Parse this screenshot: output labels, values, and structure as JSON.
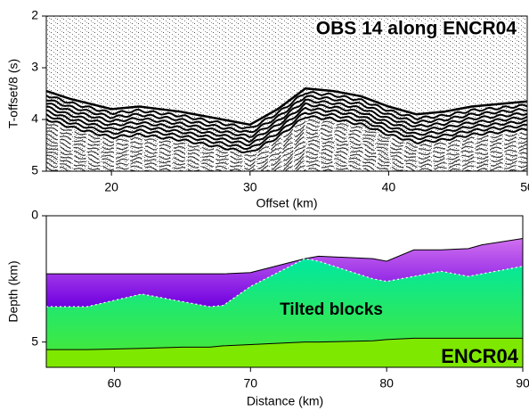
{
  "chart_data": [
    {
      "type": "seismic",
      "title": "OBS 14 along ENCR04",
      "xlabel": "Offset (km)",
      "ylabel": "T-offset/8 (s)",
      "x": [
        15.3,
        17,
        20,
        22,
        25,
        28,
        30,
        32,
        34,
        36,
        38,
        40,
        42,
        44,
        46,
        48,
        50
      ],
      "values": [
        3.45,
        3.6,
        3.8,
        3.75,
        3.85,
        4.0,
        4.1,
        3.8,
        3.4,
        3.45,
        3.55,
        3.75,
        3.9,
        3.85,
        3.75,
        3.7,
        3.65
      ],
      "color": "#000000",
      "xlim": [
        15.3,
        50
      ],
      "ylim": [
        5,
        2
      ],
      "xticks": [
        20,
        30,
        40,
        50
      ],
      "yticks": [
        2,
        3,
        4,
        5
      ]
    },
    {
      "type": "layers",
      "xlabel": "Distance (km)",
      "ylabel": "Depth (km)",
      "annotations": [
        "Tilted blocks",
        "ENCR04"
      ],
      "x": [
        55,
        58,
        62,
        65,
        67,
        68,
        70,
        74,
        75,
        79,
        80,
        82,
        84,
        86,
        87,
        90
      ],
      "series": [
        {
          "color": "#a640e8",
          "values": [
            2.3,
            2.3,
            2.3,
            2.3,
            2.3,
            2.3,
            2.25,
            1.7,
            1.6,
            1.7,
            1.8,
            1.35,
            1.35,
            1.3,
            1.15,
            0.9
          ]
        },
        {
          "color": "#10e890",
          "values": [
            3.6,
            3.6,
            3.1,
            3.4,
            3.6,
            3.55,
            2.8,
            1.7,
            1.8,
            2.5,
            2.6,
            2.4,
            2.2,
            2.4,
            2.3,
            2.0
          ]
        },
        {
          "color": "#7ee800",
          "values": [
            5.3,
            5.3,
            5.25,
            5.2,
            5.2,
            5.15,
            5.1,
            5.0,
            5.0,
            4.95,
            4.9,
            4.85,
            4.85,
            4.85,
            4.85,
            4.85
          ]
        }
      ],
      "xlim": [
        55,
        90
      ],
      "ylim": [
        6,
        0
      ],
      "xticks": [
        60,
        70,
        80,
        90
      ],
      "yticks": [
        0,
        5
      ]
    }
  ]
}
